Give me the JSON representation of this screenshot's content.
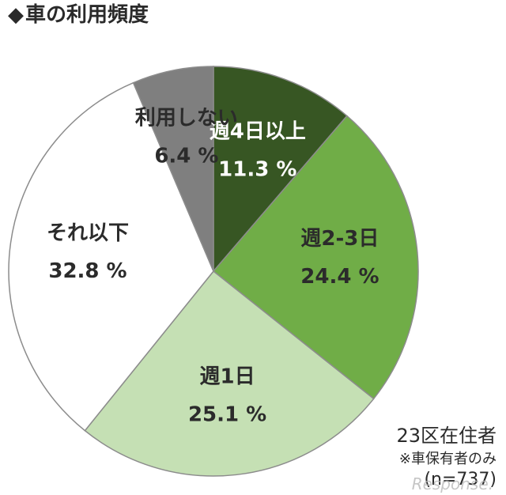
{
  "header": {
    "marker": "◆",
    "title": "車の利用頻度"
  },
  "chart_data": {
    "type": "pie",
    "unit": "%",
    "slices": [
      {
        "label": "週4日以上",
        "value": 11.3,
        "color": "#375623",
        "text_color": "#ffffff"
      },
      {
        "label": "週2-3日",
        "value": 24.4,
        "color": "#70ad47",
        "text_color": "#2b2b2b"
      },
      {
        "label": "週1日",
        "value": 25.1,
        "color": "#c5e0b4",
        "text_color": "#2b2b2b"
      },
      {
        "label": "それ以下",
        "value": 32.8,
        "color": "#ffffff",
        "text_color": "#2b2b2b"
      },
      {
        "label": "利用しない",
        "value": 6.4,
        "color": "#7f7f7f",
        "text_color": "#2b2b2b"
      }
    ],
    "start_angle_deg": 0,
    "direction": "clockwise",
    "edge_color": "#8c8c8c"
  },
  "notes": {
    "line1": "23区在住者",
    "line2": "※車保有者のみ",
    "line3": "(n=737)"
  },
  "watermark": "Response."
}
